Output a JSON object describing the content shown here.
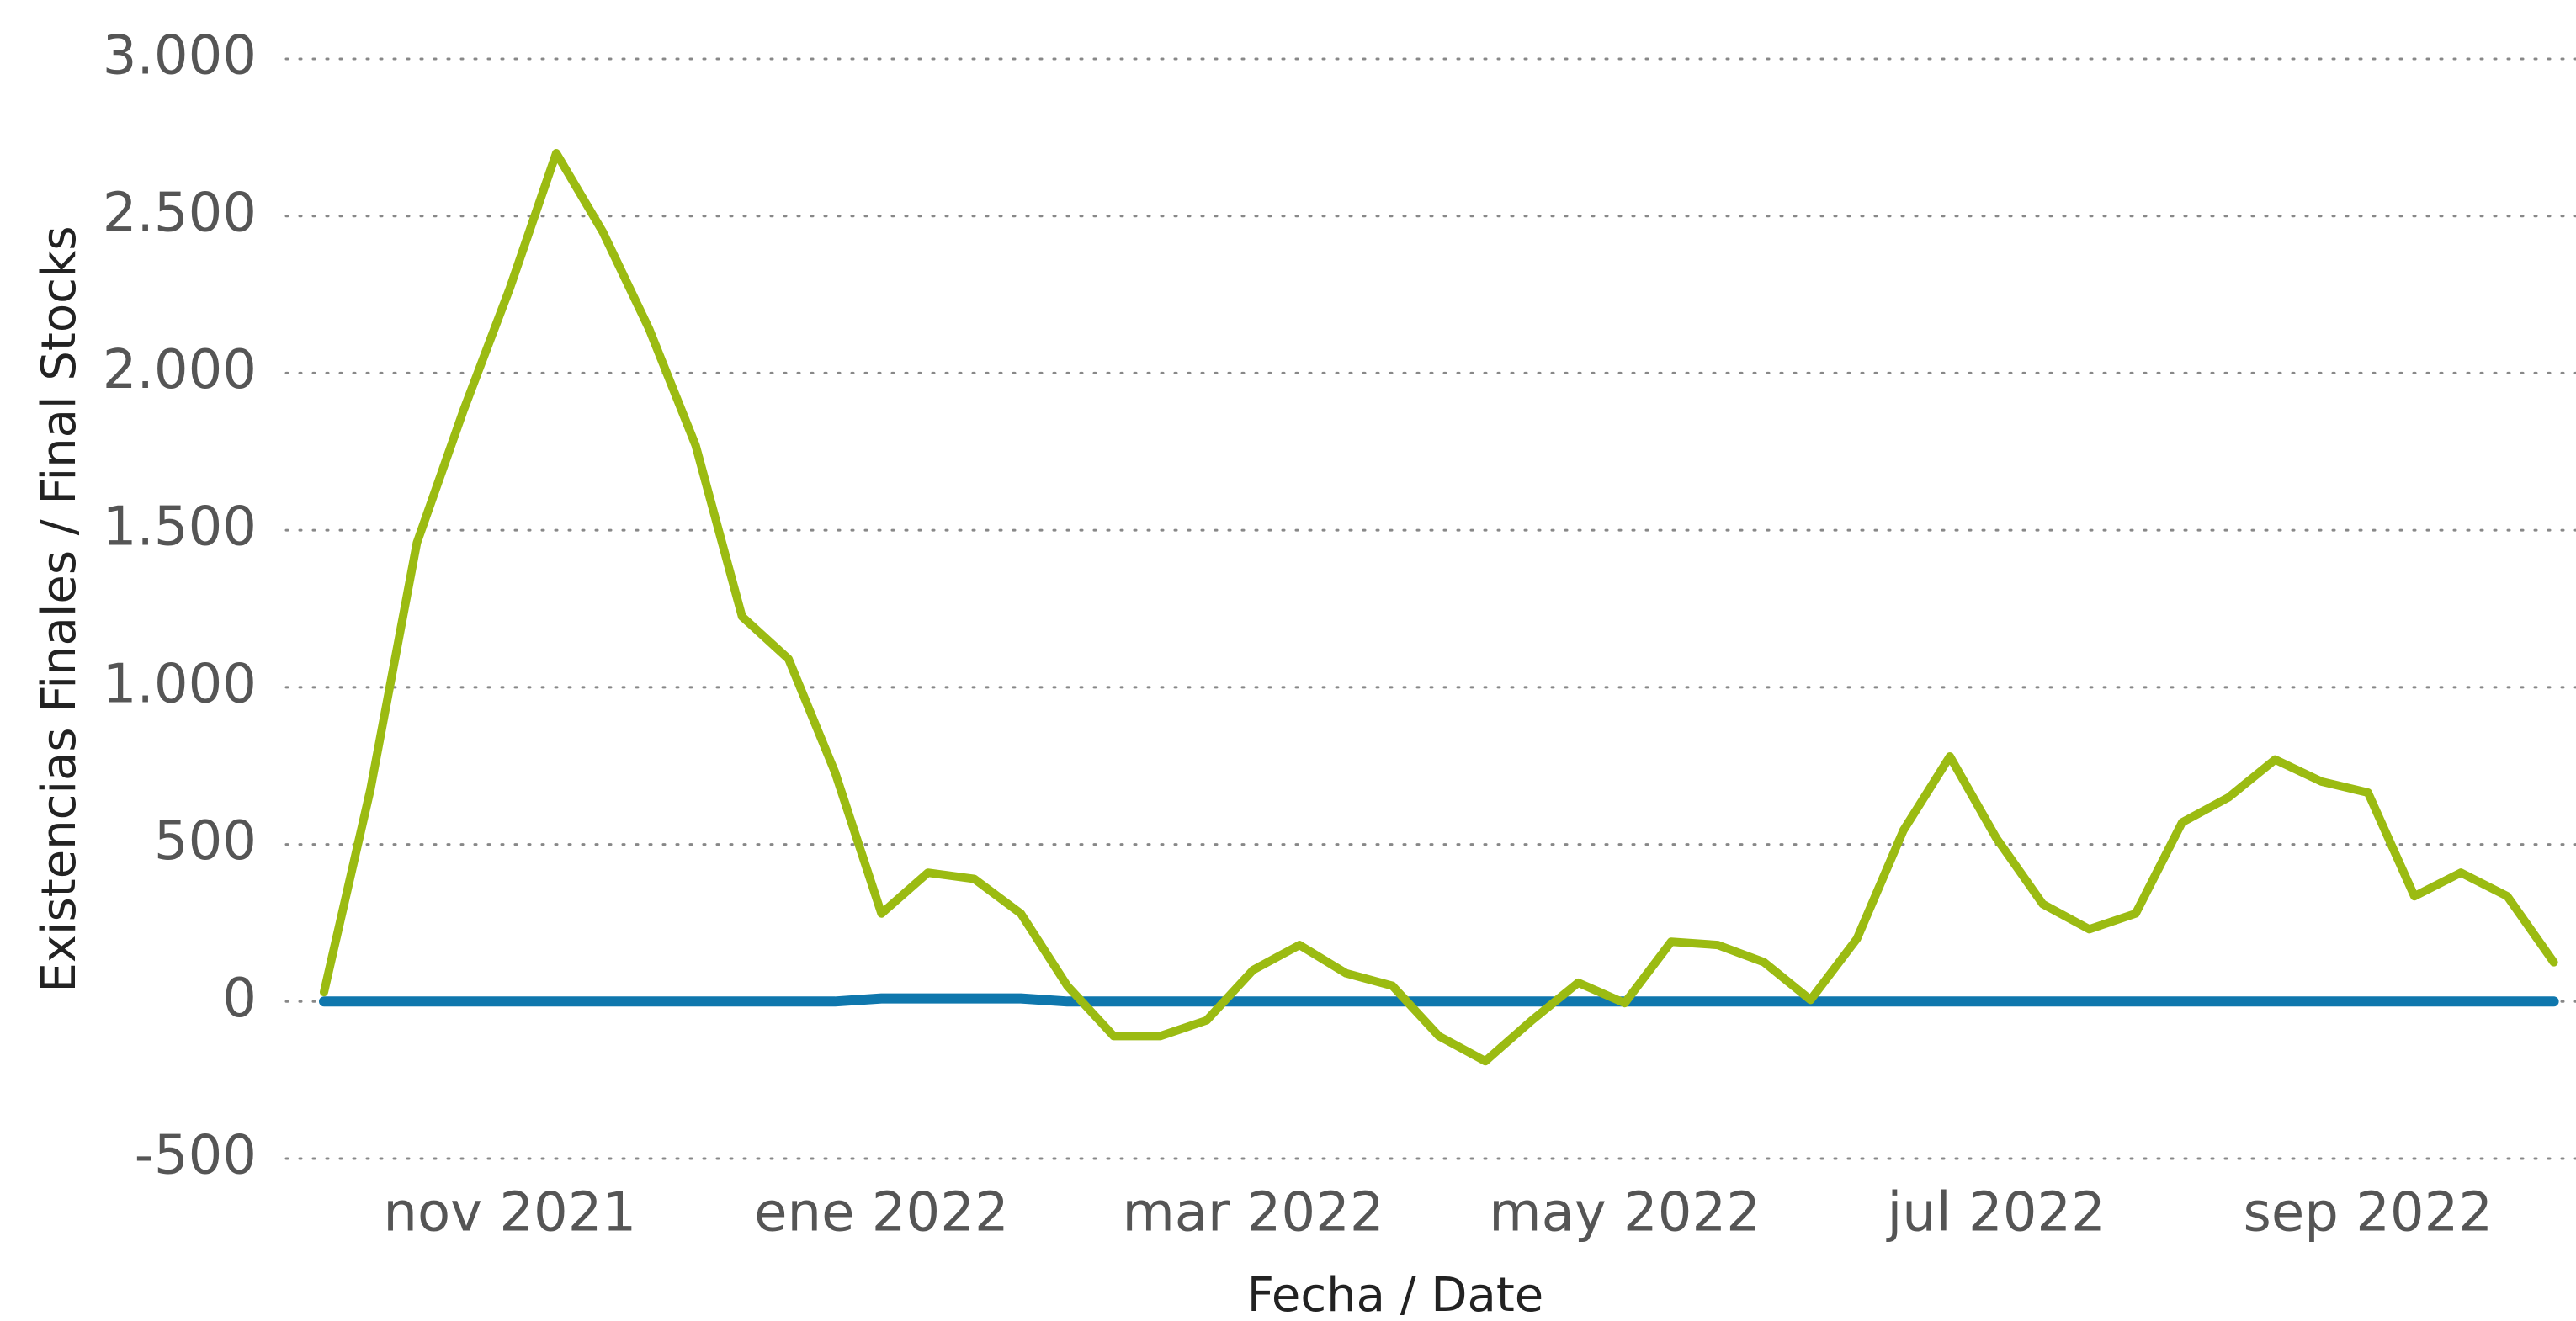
{
  "chart_data": {
    "type": "line",
    "xlabel": "Fecha / Date",
    "ylabel": "Existencias Finales / Final Stocks",
    "categories": [
      null,
      null,
      null,
      null,
      "nov 2021",
      null,
      null,
      null,
      null,
      null,
      null,
      null,
      "ene 2022",
      null,
      null,
      null,
      null,
      null,
      null,
      null,
      "mar 2022",
      null,
      null,
      null,
      null,
      null,
      null,
      null,
      "may 2022",
      null,
      null,
      null,
      null,
      null,
      null,
      null,
      "jul 2022",
      null,
      null,
      null,
      null,
      null,
      null,
      null,
      "sep 2022",
      null,
      null,
      null,
      null
    ],
    "series": [
      {
        "color": "#9bbb12",
        "values": [
          30,
          675,
          1460,
          1880,
          2270,
          2700,
          2450,
          2140,
          1770,
          1225,
          1090,
          730,
          280,
          410,
          390,
          280,
          50,
          -110,
          -110,
          -60,
          100,
          180,
          90,
          50,
          -110,
          -190,
          -60,
          60,
          -5,
          190,
          180,
          125,
          5,
          200,
          545,
          780,
          520,
          310,
          230,
          280,
          570,
          650,
          770,
          700,
          665,
          335,
          410,
          335,
          125
        ]
      },
      {
        "color": "#0f77ad",
        "values": [
          0,
          0,
          0,
          0,
          0,
          0,
          0,
          0,
          0,
          0,
          0,
          0,
          10,
          10,
          10,
          10,
          0,
          0,
          0,
          0,
          0,
          0,
          0,
          0,
          0,
          0,
          0,
          0,
          0,
          0,
          0,
          0,
          0,
          0,
          0,
          0,
          0,
          0,
          0,
          0,
          0,
          0,
          0,
          0,
          0,
          0,
          0,
          0,
          0
        ]
      }
    ],
    "ylim": [
      -500,
      3000
    ],
    "yticks": [
      -500,
      0,
      500,
      {
        "value": 1000,
        "label": "1.000"
      },
      {
        "value": 1500,
        "label": "1.500"
      },
      {
        "value": 2000,
        "label": "2.000"
      },
      {
        "value": 2500,
        "label": "2.500"
      },
      {
        "value": 3000,
        "label": "3.000"
      }
    ],
    "grid": true
  }
}
